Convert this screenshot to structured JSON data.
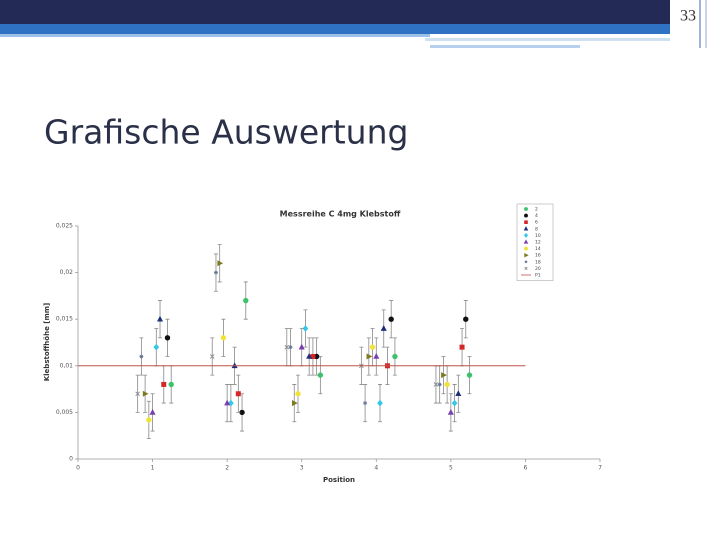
{
  "slide": {
    "number": "33",
    "title": "Grafische Auswertung"
  },
  "chart_data": {
    "type": "scatter",
    "title": "Messreihe C 4mg Klebstoff",
    "x_label": "Position",
    "y_label": "Klebstoffhöhe [mm]",
    "xlim": [
      0,
      7
    ],
    "ylim": [
      0,
      0.025
    ],
    "xticks": [
      0,
      1,
      2,
      3,
      4,
      5,
      6,
      7
    ],
    "yticks": [
      0,
      {
        "value": 0.005,
        "label": "0,005"
      },
      {
        "value": 0.01,
        "label": "0,01"
      },
      {
        "value": 0.015,
        "label": "0,015"
      },
      {
        "value": 0.02,
        "label": "0,02"
      },
      {
        "value": 0.025,
        "label": "0,025"
      }
    ],
    "grid": false,
    "legend": "upper right",
    "series": [
      {
        "name": "2",
        "color": "#3cc36a",
        "marker": "circle",
        "x": [
          1.25,
          2.25,
          3.25,
          4.25,
          5.25
        ],
        "values": [
          0.008,
          0.017,
          0.009,
          0.011,
          0.009
        ],
        "errors": [
          0.002,
          0.002,
          0.002,
          0.002,
          0.002
        ]
      },
      {
        "name": "4",
        "color": "#111111",
        "marker": "circle",
        "x": [
          1.2,
          2.2,
          3.2,
          4.2,
          5.2
        ],
        "values": [
          0.013,
          0.005,
          0.011,
          0.015,
          0.015
        ],
        "errors": [
          0.002,
          0.002,
          0.002,
          0.002,
          0.002
        ]
      },
      {
        "name": "6",
        "color": "#d62728",
        "marker": "square",
        "x": [
          1.15,
          2.15,
          3.15,
          4.15,
          5.15
        ],
        "values": [
          0.008,
          0.007,
          0.011,
          0.01,
          0.012
        ],
        "errors": [
          0.002,
          0.002,
          0.002,
          0.002,
          0.002
        ]
      },
      {
        "name": "8",
        "color": "#1f2f7a",
        "marker": "triangle",
        "x": [
          1.1,
          2.1,
          3.1,
          4.1,
          5.1
        ],
        "values": [
          0.015,
          0.01,
          0.011,
          0.014,
          0.007
        ],
        "errors": [
          0.002,
          0.002,
          0.002,
          0.002,
          0.002
        ]
      },
      {
        "name": "10",
        "color": "#35c8e6",
        "marker": "diamond",
        "x": [
          1.05,
          2.05,
          3.05,
          4.05,
          5.05
        ],
        "values": [
          0.012,
          0.006,
          0.014,
          0.006,
          0.006
        ],
        "errors": [
          0.002,
          0.002,
          0.002,
          0.002,
          0.002
        ]
      },
      {
        "name": "12",
        "color": "#7b3fb0",
        "marker": "triangle",
        "x": [
          1.0,
          2.0,
          3.0,
          4.0,
          5.0
        ],
        "values": [
          0.005,
          0.006,
          0.012,
          0.011,
          0.005
        ],
        "errors": [
          0.002,
          0.002,
          0.002,
          0.002,
          0.002
        ]
      },
      {
        "name": "14",
        "color": "#f2e23a",
        "marker": "circle",
        "x": [
          0.95,
          1.95,
          2.95,
          3.95,
          4.95
        ],
        "values": [
          0.0042,
          0.013,
          0.007,
          0.012,
          0.008
        ],
        "errors": [
          0.002,
          0.002,
          0.002,
          0.002,
          0.002
        ]
      },
      {
        "name": "16",
        "color": "#7d7a20",
        "marker": "tright",
        "x": [
          0.9,
          1.9,
          2.9,
          3.9,
          4.9
        ],
        "values": [
          0.007,
          0.021,
          0.006,
          0.011,
          0.009
        ],
        "errors": [
          0.002,
          0.002,
          0.002,
          0.002,
          0.002
        ]
      },
      {
        "name": "18",
        "color": "#6c7a99",
        "marker": "star",
        "x": [
          0.85,
          1.85,
          2.85,
          3.85,
          4.85
        ],
        "values": [
          0.011,
          0.02,
          0.012,
          0.006,
          0.008
        ],
        "errors": [
          0.002,
          0.002,
          0.002,
          0.002,
          0.002
        ]
      },
      {
        "name": "20",
        "color": "#8a8a8a",
        "marker": "x",
        "x": [
          0.8,
          1.8,
          2.8,
          3.8,
          4.8
        ],
        "values": [
          0.007,
          0.011,
          0.012,
          0.01,
          0.008
        ],
        "errors": [
          0.002,
          0.002,
          0.002,
          0.002,
          0.002
        ]
      },
      {
        "name": "P1",
        "color": "#c0504d",
        "marker": "line",
        "x": [
          0,
          6
        ],
        "values": [
          0.01,
          0.01
        ]
      }
    ]
  }
}
